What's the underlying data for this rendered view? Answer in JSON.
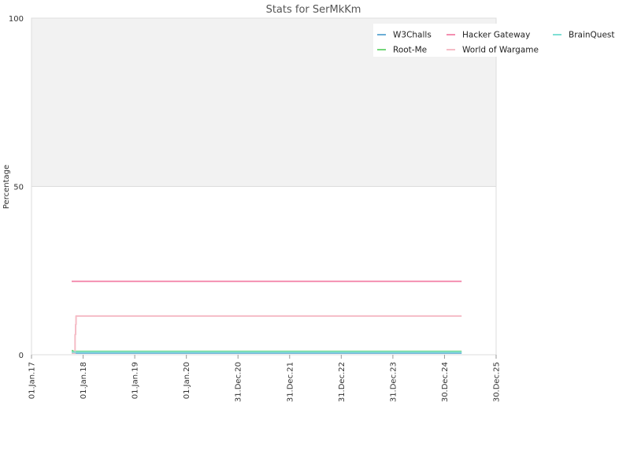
{
  "chart_data": {
    "type": "line",
    "title": "Stats for SerMkKm",
    "xlabel": "",
    "ylabel": "Percentage",
    "ylim": [
      0,
      100
    ],
    "yticks": [
      0,
      50,
      100
    ],
    "xlim": [
      "2017-01-01",
      "2025-12-30"
    ],
    "xticks": [
      {
        "date": "2017-01-01",
        "label": "01.Jan.17"
      },
      {
        "date": "2018-01-01",
        "label": "01.Jan.18"
      },
      {
        "date": "2019-01-01",
        "label": "01.Jan.19"
      },
      {
        "date": "2020-01-01",
        "label": "01.Jan.20"
      },
      {
        "date": "2020-12-31",
        "label": "31.Dec.20"
      },
      {
        "date": "2021-12-31",
        "label": "31.Dec.21"
      },
      {
        "date": "2022-12-31",
        "label": "31.Dec.22"
      },
      {
        "date": "2023-12-31",
        "label": "31.Dec.23"
      },
      {
        "date": "2024-12-30",
        "label": "30.Dec.24"
      },
      {
        "date": "2025-12-30",
        "label": "30.Dec.25"
      }
    ],
    "bands": [
      {
        "from": 50,
        "to": 100,
        "color": "#f2f2f2"
      }
    ],
    "grid": true,
    "legend_position": "top-right",
    "series": [
      {
        "name": "W3Challs",
        "color": "#6baed6",
        "points": [
          [
            "2017-10-12",
            0.5
          ],
          [
            "2025-04-30",
            0.5
          ]
        ]
      },
      {
        "name": "Root-Me",
        "color": "#74d67a",
        "points": [
          [
            "2017-10-12",
            1.2
          ],
          [
            "2017-10-20",
            1.0
          ],
          [
            "2025-04-30",
            1.0
          ]
        ]
      },
      {
        "name": "Hacker Gateway",
        "color": "#f48fb1",
        "points": [
          [
            "2017-10-12",
            21.8
          ],
          [
            "2025-04-30",
            21.8
          ]
        ]
      },
      {
        "name": "World of Wargame",
        "color": "#f5bcc6",
        "points": [
          [
            "2017-10-12",
            0.5
          ],
          [
            "2017-11-01",
            0.5
          ],
          [
            "2017-11-05",
            6.0
          ],
          [
            "2017-11-09",
            9.0
          ],
          [
            "2017-11-12",
            11.5
          ],
          [
            "2025-04-30",
            11.5
          ]
        ]
      },
      {
        "name": "BrainQuest",
        "color": "#7fdfd4",
        "points": [
          [
            "2017-10-12",
            0.8
          ],
          [
            "2025-04-30",
            0.8
          ]
        ]
      }
    ]
  }
}
